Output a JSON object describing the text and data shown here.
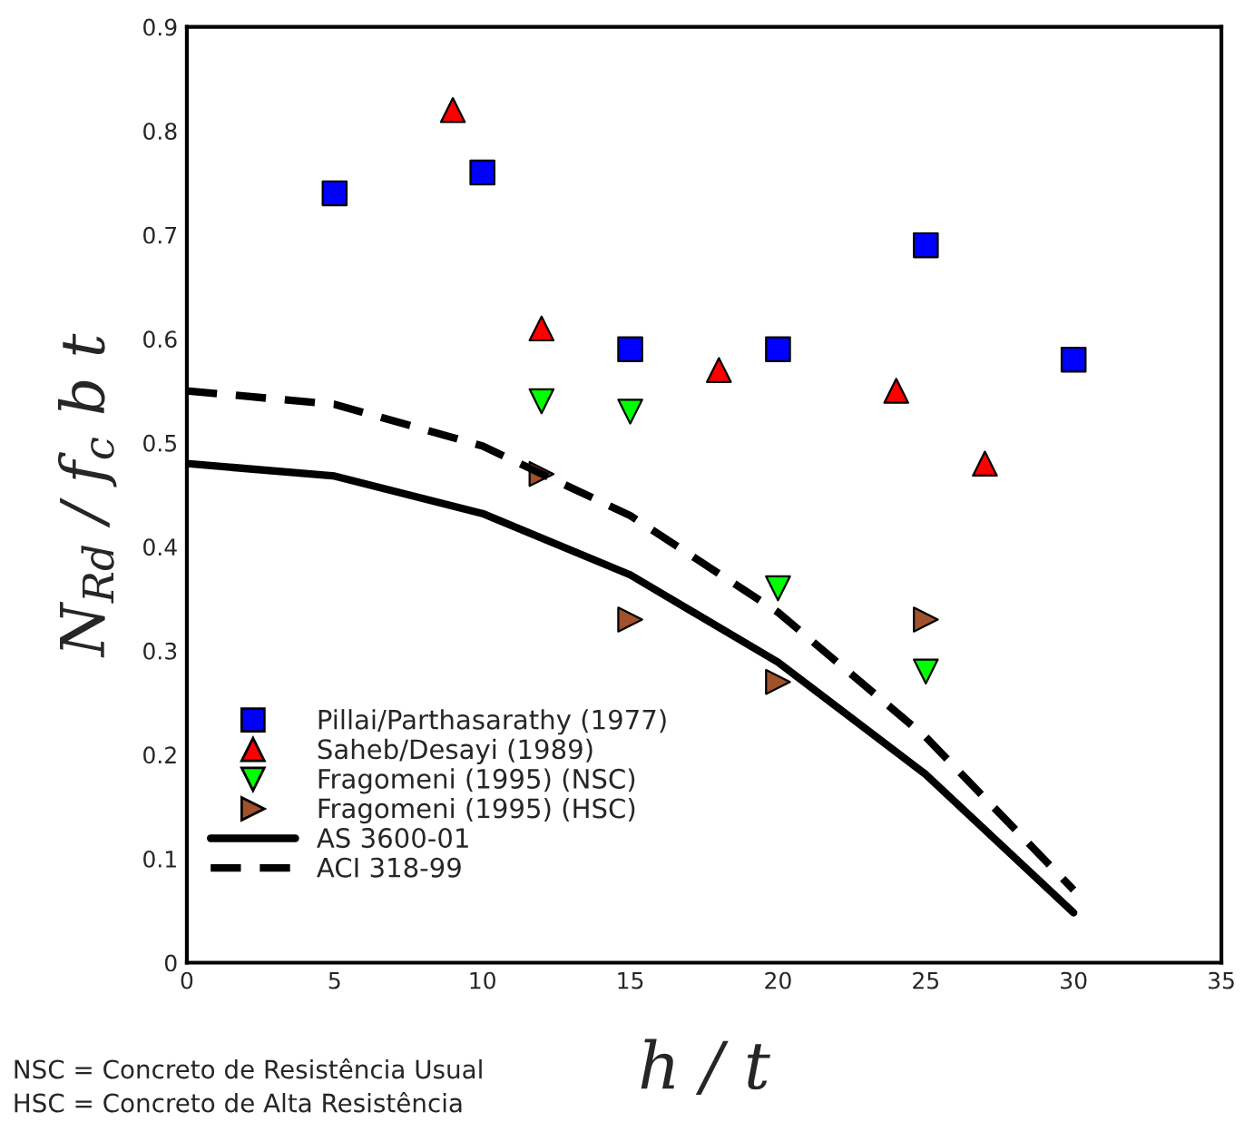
{
  "chart_data": {
    "type": "scatter",
    "xlabel": "h / t",
    "ylabel": "N$_{Rd}$ / f$_{c}$ b t",
    "xlim": [
      0,
      35
    ],
    "xticks": [
      0,
      5,
      10,
      15,
      20,
      25,
      30,
      35
    ],
    "ylim": [
      0,
      0.9
    ],
    "yticks": [
      0,
      0.1,
      0.2,
      0.3,
      0.4,
      0.5,
      0.6,
      0.7,
      0.8,
      0.9
    ],
    "grid": false,
    "legend": "bottom left",
    "series": [
      {
        "name": "Pillai/Parthasarathy (1977)",
        "marker": "square",
        "color": "#0000ff",
        "x": [
          5,
          10,
          15,
          20,
          25,
          30
        ],
        "values": [
          0.74,
          0.76,
          0.59,
          0.59,
          0.69,
          0.58
        ]
      },
      {
        "name": "Saheb/Desayi (1989)",
        "marker": "triangle",
        "color": "#ff0000",
        "x": [
          9,
          12,
          18,
          24,
          27
        ],
        "values": [
          0.82,
          0.61,
          0.57,
          0.55,
          0.48
        ]
      },
      {
        "name": "Fragomeni (1995) (NSC)",
        "marker": "triangle-down",
        "color": "#00ff00",
        "x": [
          12,
          15,
          20,
          25
        ],
        "values": [
          0.54,
          0.53,
          0.36,
          0.28
        ]
      },
      {
        "name": "Fragomeni (1995) (HSC)",
        "marker": "triangle-right",
        "color": "#a0522d",
        "x": [
          12,
          15,
          20,
          25
        ],
        "values": [
          0.47,
          0.33,
          0.27,
          0.33
        ]
      },
      {
        "name": "AS 3600-01",
        "type": "line",
        "line_style": "solid",
        "marker": "none",
        "color": "#000000",
        "x": [
          0,
          5,
          10,
          15,
          20,
          25,
          30
        ],
        "values": [
          0.48,
          0.468,
          0.432,
          0.373,
          0.289,
          0.181,
          0.048
        ]
      },
      {
        "name": "ACI 318-99",
        "type": "line",
        "line_style": "dashed",
        "marker": "none",
        "color": "#000000",
        "x": [
          0,
          5,
          10,
          15,
          20,
          25,
          30
        ],
        "values": [
          0.55,
          0.537,
          0.497,
          0.43,
          0.337,
          0.217,
          0.07
        ]
      }
    ],
    "annotations": [
      "NSC = Concreto de Resistência Usual",
      "HSC = Concreto de Alta Resistência"
    ]
  }
}
